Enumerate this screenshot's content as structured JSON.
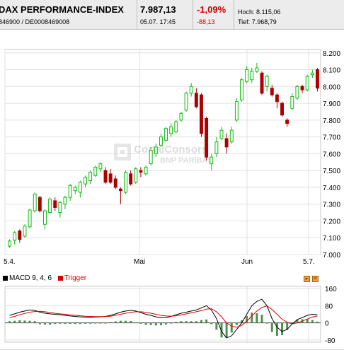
{
  "header": {
    "title": "DAX PERFORMANCE-INDEX",
    "ids": "846900  /  DE0008469008",
    "price": "7.987,13",
    "datetime": "05.07.  17:45",
    "change_pct": "-1,09%",
    "change_abs": "-88,13",
    "high_label": "Hoch:",
    "high_value": "8.115,06",
    "low_label": "Tief:",
    "low_value": "7.968,79"
  },
  "watermark": {
    "line1": "CortalConsors",
    "line2": "BNP PARIBAS"
  },
  "colors": {
    "up": "#11bb11",
    "down": "#aa0000",
    "macd": "#000000",
    "trigger": "#dd0000",
    "histogram": "#4f8f4f",
    "grid": "#e0e0e0"
  },
  "macd_legend": {
    "macd_label": "MACD 9, 4, 6",
    "trigger_label": "Trigger"
  },
  "buttons": {
    "expand_icon": "expand-icon",
    "close_icon": "close-icon"
  },
  "chart_data": [
    {
      "type": "candlestick",
      "x_labels": [
        "5.4.",
        "Mai",
        "Jun",
        "5.7."
      ],
      "y_ticks": [
        "7.000",
        "7.100",
        "7.200",
        "7.300",
        "7.400",
        "7.500",
        "7.600",
        "7.700",
        "7.800",
        "7.900",
        "8.000",
        "8.100",
        "8.200"
      ],
      "ylim": [
        7000,
        8220
      ],
      "grid": true,
      "candles": [
        [
          7050,
          7080,
          7040,
          7090
        ],
        [
          7085,
          7130,
          7060,
          7140
        ],
        [
          7140,
          7090,
          7070,
          7150
        ],
        [
          7110,
          7170,
          7100,
          7180
        ],
        [
          7165,
          7265,
          7155,
          7270
        ],
        [
          7260,
          7360,
          7250,
          7370
        ],
        [
          7340,
          7260,
          7250,
          7350
        ],
        [
          7180,
          7260,
          7150,
          7270
        ],
        [
          7250,
          7330,
          7240,
          7340
        ],
        [
          7320,
          7280,
          7260,
          7340
        ],
        [
          7250,
          7310,
          7220,
          7320
        ],
        [
          7300,
          7340,
          7270,
          7350
        ],
        [
          7340,
          7410,
          7320,
          7420
        ],
        [
          7380,
          7400,
          7360,
          7410
        ],
        [
          7370,
          7430,
          7340,
          7440
        ],
        [
          7420,
          7460,
          7400,
          7470
        ],
        [
          7440,
          7490,
          7420,
          7500
        ],
        [
          7470,
          7520,
          7460,
          7530
        ],
        [
          7510,
          7540,
          7490,
          7550
        ],
        [
          7500,
          7430,
          7420,
          7520
        ],
        [
          7480,
          7430,
          7420,
          7510
        ],
        [
          7450,
          7400,
          7390,
          7470
        ],
        [
          7390,
          7380,
          7300,
          7400
        ],
        [
          7370,
          7490,
          7360,
          7500
        ],
        [
          7480,
          7420,
          7410,
          7500
        ],
        [
          7430,
          7510,
          7420,
          7520
        ],
        [
          7500,
          7490,
          7460,
          7520
        ],
        [
          7480,
          7520,
          7470,
          7530
        ],
        [
          7540,
          7620,
          7530,
          7640
        ],
        [
          7600,
          7640,
          7580,
          7660
        ],
        [
          7650,
          7700,
          7640,
          7720
        ],
        [
          7680,
          7750,
          7670,
          7760
        ],
        [
          7720,
          7760,
          7700,
          7780
        ],
        [
          7730,
          7790,
          7720,
          7800
        ],
        [
          7800,
          7840,
          7790,
          7850
        ],
        [
          7860,
          7960,
          7850,
          7970
        ],
        [
          7960,
          8000,
          7940,
          8020
        ],
        [
          7960,
          7880,
          7870,
          7990
        ],
        [
          7950,
          7720,
          7700,
          7960
        ],
        [
          7810,
          7580,
          7560,
          7820
        ],
        [
          7540,
          7580,
          7500,
          7600
        ],
        [
          7600,
          7670,
          7580,
          7700
        ],
        [
          7690,
          7740,
          7680,
          7760
        ],
        [
          7690,
          7640,
          7600,
          7720
        ],
        [
          7670,
          7740,
          7660,
          7760
        ],
        [
          7800,
          7910,
          7790,
          7930
        ],
        [
          7920,
          8040,
          7910,
          8050
        ],
        [
          8030,
          8100,
          8020,
          8120
        ],
        [
          8040,
          8090,
          8020,
          8110
        ],
        [
          8090,
          8110,
          8080,
          8140
        ],
        [
          8080,
          7960,
          7950,
          8090
        ],
        [
          8000,
          8060,
          7970,
          8070
        ],
        [
          7990,
          7950,
          7940,
          8010
        ],
        [
          7950,
          7910,
          7870,
          7960
        ],
        [
          7900,
          7830,
          7820,
          7910
        ],
        [
          7800,
          7780,
          7760,
          7810
        ],
        [
          7870,
          7940,
          7860,
          7960
        ],
        [
          7930,
          8000,
          7920,
          8010
        ],
        [
          8000,
          7980,
          7960,
          8010
        ],
        [
          7980,
          8060,
          7970,
          8070
        ],
        [
          8070,
          8080,
          8050,
          8100
        ],
        [
          8100,
          7990,
          7970,
          8110
        ]
      ]
    },
    {
      "type": "line",
      "title": "MACD 9, 4, 6",
      "y_ticks": [
        "160",
        "80",
        "0",
        "-80"
      ],
      "ylim": [
        -90,
        170
      ],
      "series": [
        {
          "name": "MACD 9, 4, 6",
          "values": [
            35,
            42,
            50,
            55,
            60,
            58,
            50,
            45,
            42,
            40,
            38,
            35,
            32,
            30,
            28,
            27,
            26,
            27,
            28,
            30,
            35,
            42,
            50,
            55,
            58,
            55,
            48,
            40,
            35,
            28,
            24,
            25,
            30,
            38,
            45,
            50,
            55,
            60,
            70,
            80,
            60,
            20,
            -40,
            -70,
            -60,
            -30,
            0,
            40,
            80,
            100,
            110,
            80,
            20,
            -20,
            -40,
            -30,
            -5,
            15,
            25,
            35,
            40,
            38
          ]
        },
        {
          "name": "Trigger",
          "values": [
            25,
            30,
            38,
            44,
            50,
            53,
            54,
            52,
            48,
            45,
            42,
            40,
            37,
            35,
            33,
            31,
            30,
            29,
            29,
            29,
            31,
            35,
            40,
            45,
            49,
            52,
            52,
            49,
            45,
            40,
            35,
            32,
            31,
            33,
            37,
            42,
            47,
            52,
            57,
            64,
            66,
            52,
            28,
            0,
            -15,
            -20,
            -12,
            8,
            32,
            55,
            72,
            79,
            62,
            40,
            17,
            3,
            -5,
            0,
            8,
            18,
            27,
            32
          ]
        }
      ],
      "histogram": [
        8,
        10,
        12,
        11,
        10,
        8,
        -6,
        -8,
        -9,
        -5,
        -4,
        -5,
        -5,
        -5,
        -5,
        -4,
        -4,
        -2,
        -1,
        0,
        4,
        7,
        10,
        10,
        9,
        3,
        -4,
        -9,
        -10,
        -12,
        -11,
        -7,
        -1,
        5,
        8,
        8,
        8,
        8,
        13,
        16,
        -6,
        -32,
        -68,
        -70,
        -45,
        -10,
        12,
        32,
        48,
        45,
        38,
        0,
        -42,
        -60,
        -57,
        -33,
        0,
        15,
        17,
        17,
        13,
        6
      ]
    }
  ]
}
